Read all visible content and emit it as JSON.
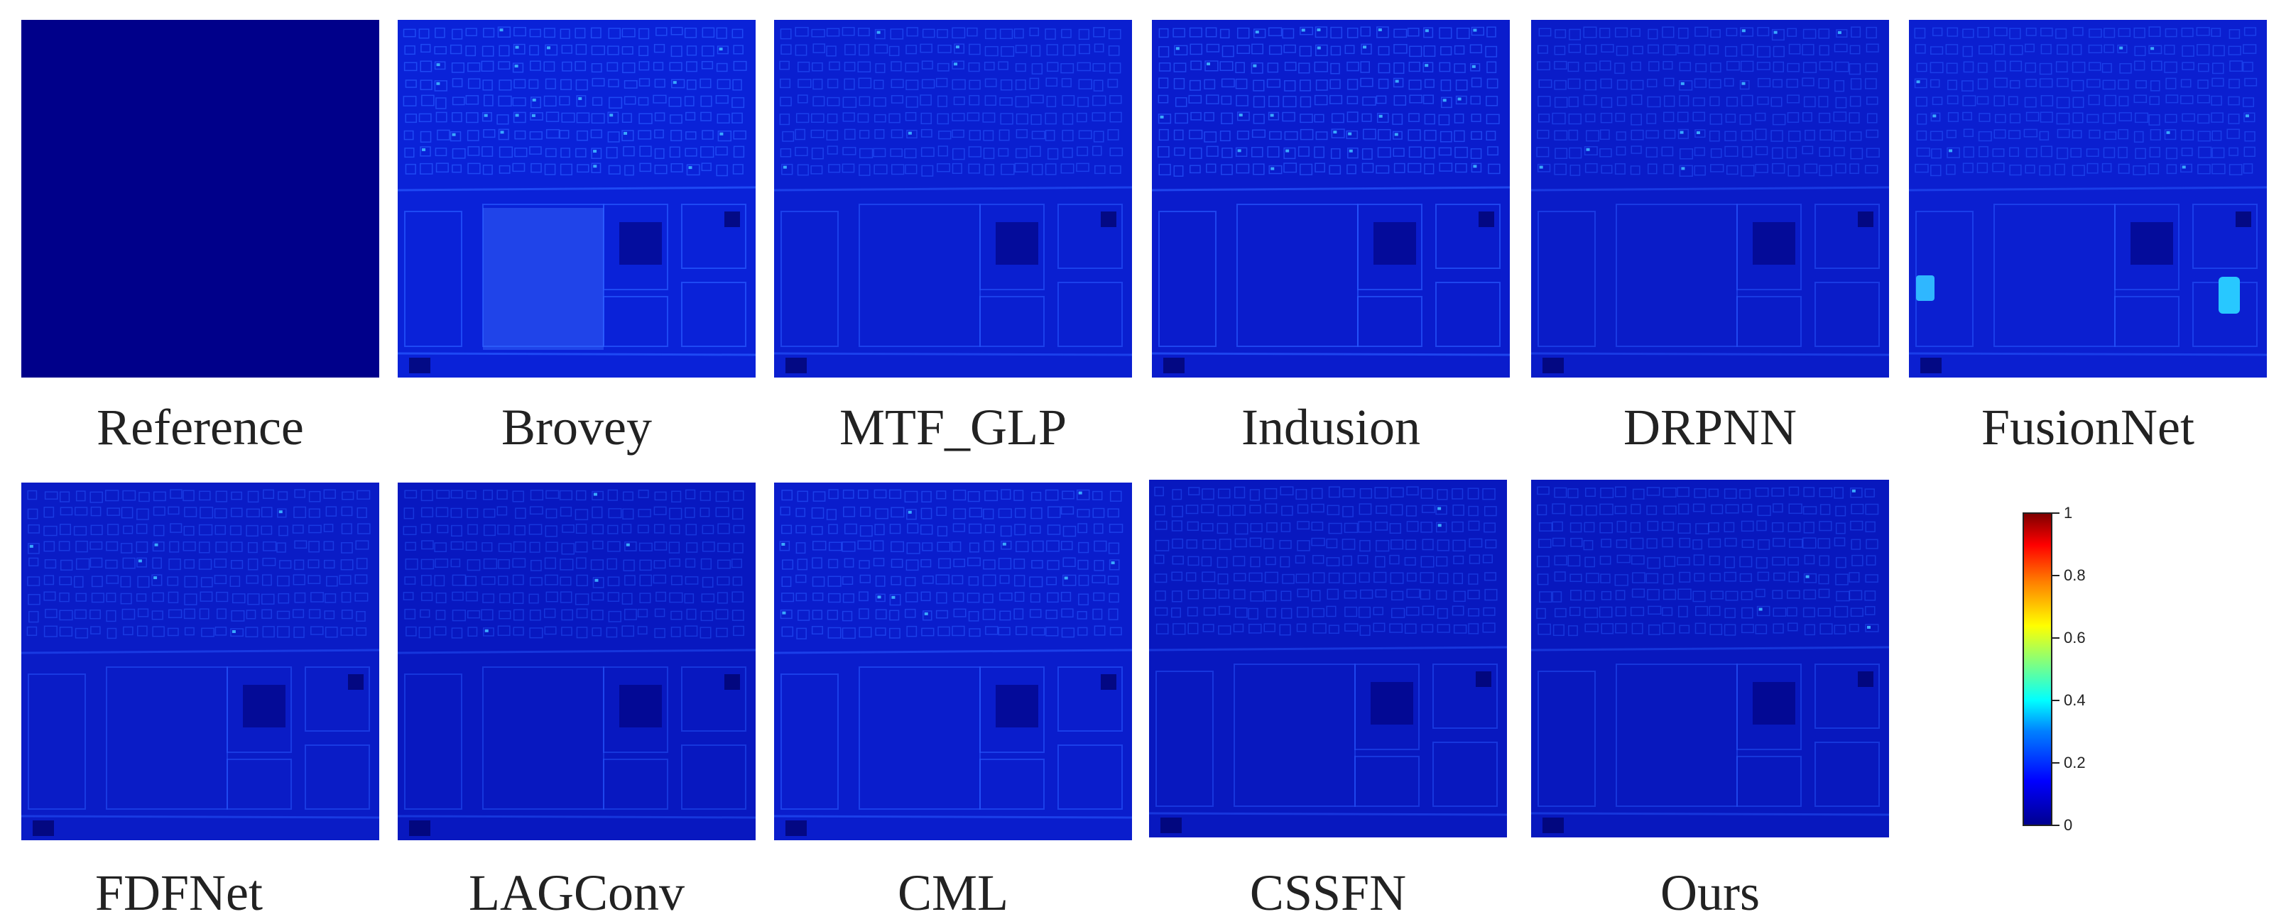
{
  "panels": [
    {
      "label": "Reference",
      "style": "flat"
    },
    {
      "label": "Brovey",
      "style": "brovey"
    },
    {
      "label": "MTF_GLP",
      "style": "mtf"
    },
    {
      "label": "Indusion",
      "style": "indusion"
    },
    {
      "label": "DRPNN",
      "style": "drpnn"
    },
    {
      "label": "FusionNet",
      "style": "fusionnet"
    },
    {
      "label": "FDFNet",
      "style": "fdfnet"
    },
    {
      "label": "LAGConv",
      "style": "lagconv"
    },
    {
      "label": "CML",
      "style": "cml"
    },
    {
      "label": "CSSFN",
      "style": "cssfn"
    },
    {
      "label": "Ours",
      "style": "ours"
    }
  ],
  "colorbar": {
    "ticks": [
      "0",
      "0.2",
      "0.4",
      "0.6",
      "0.8",
      "1"
    ],
    "range": [
      0,
      1
    ],
    "colormap": "jet",
    "colors": {
      "low": "#00008f",
      "mid": "#00ffff",
      "high": "#800000"
    }
  }
}
